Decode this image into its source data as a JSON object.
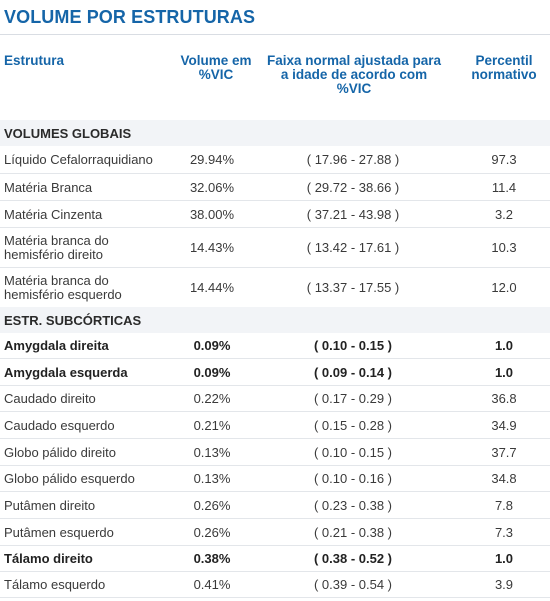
{
  "title": "VOLUME POR ESTRUTURAS",
  "headers": {
    "estrutura": "Estrutura",
    "volume": "Volume em %VIC",
    "faixa": "Faixa normal ajustada para a idade de acordo com %VIC",
    "percentil": "Percentil normativo"
  },
  "sections": [
    {
      "name": "VOLUMES GLOBAIS",
      "rows": [
        {
          "estrutura": "Líquido Cefalorraquidiano",
          "volume": "29.94%",
          "faixa": "( 17.96 - 27.88 )",
          "percentil": "97.3",
          "bold": false
        },
        {
          "estrutura": "Matéria Branca",
          "volume": "32.06%",
          "faixa": "( 29.72 - 38.66 )",
          "percentil": "11.4",
          "bold": false
        },
        {
          "estrutura": "Matéria Cinzenta",
          "volume": "38.00%",
          "faixa": "( 37.21 - 43.98 )",
          "percentil": "3.2",
          "bold": false
        },
        {
          "estrutura": "Matéria branca do hemisfério direito",
          "volume": "14.43%",
          "faixa": "( 13.42 - 17.61 )",
          "percentil": "10.3",
          "bold": false
        },
        {
          "estrutura": "Matéria branca do hemisfério esquerdo",
          "volume": "14.44%",
          "faixa": "( 13.37 - 17.55 )",
          "percentil": "12.0",
          "bold": false
        }
      ]
    },
    {
      "name": "ESTR. SUBCÓRTICAS",
      "rows": [
        {
          "estrutura": "Amygdala direita",
          "volume": "0.09%",
          "faixa": "( 0.10 - 0.15 )",
          "percentil": "1.0",
          "bold": true
        },
        {
          "estrutura": "Amygdala esquerda",
          "volume": "0.09%",
          "faixa": "( 0.09 - 0.14 )",
          "percentil": "1.0",
          "bold": true
        },
        {
          "estrutura": "Caudado direito",
          "volume": "0.22%",
          "faixa": "( 0.17 - 0.29 )",
          "percentil": "36.8",
          "bold": false
        },
        {
          "estrutura": "Caudado esquerdo",
          "volume": "0.21%",
          "faixa": "( 0.15 - 0.28 )",
          "percentil": "34.9",
          "bold": false
        },
        {
          "estrutura": "Globo pálido direito",
          "volume": "0.13%",
          "faixa": "( 0.10 - 0.15 )",
          "percentil": "37.7",
          "bold": false
        },
        {
          "estrutura": "Globo pálido esquerdo",
          "volume": "0.13%",
          "faixa": "( 0.10 - 0.16 )",
          "percentil": "34.8",
          "bold": false
        },
        {
          "estrutura": "Putâmen direito",
          "volume": "0.26%",
          "faixa": "( 0.23 - 0.38 )",
          "percentil": "7.8",
          "bold": false
        },
        {
          "estrutura": "Putâmen esquerdo",
          "volume": "0.26%",
          "faixa": "( 0.21 - 0.38 )",
          "percentil": "7.3",
          "bold": false
        },
        {
          "estrutura": "Tálamo direito",
          "volume": "0.38%",
          "faixa": "( 0.38 - 0.52 )",
          "percentil": "1.0",
          "bold": true
        },
        {
          "estrutura": "Tálamo esquerdo",
          "volume": "0.41%",
          "faixa": "( 0.39 - 0.54 )",
          "percentil": "3.9",
          "bold": false
        }
      ]
    }
  ]
}
